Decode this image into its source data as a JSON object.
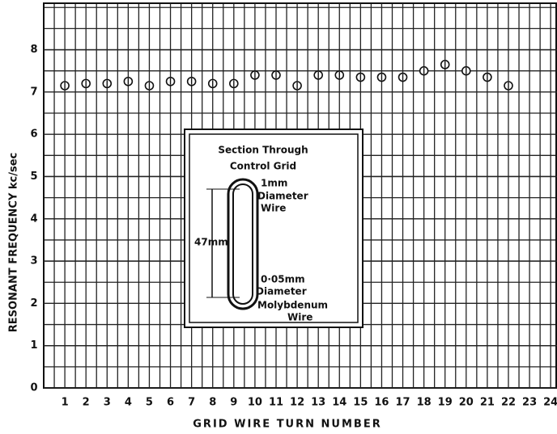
{
  "chart_data": {
    "type": "scatter",
    "y_label": "RESONANT FREQUENCY kc/sec",
    "x_label": "GRID WIRE TURN NUMBER",
    "x": [
      1,
      2,
      3,
      4,
      5,
      6,
      7,
      8,
      9,
      10,
      11,
      12,
      13,
      14,
      15,
      16,
      17,
      18,
      19,
      20,
      21,
      22
    ],
    "values": [
      7.15,
      7.2,
      7.2,
      7.25,
      7.15,
      7.25,
      7.25,
      7.2,
      7.2,
      7.4,
      7.4,
      7.15,
      7.4,
      7.4,
      7.35,
      7.35,
      7.35,
      7.5,
      7.65,
      7.5,
      7.35,
      7.15
    ],
    "color": "#111",
    "xlim": [
      0,
      24.3
    ],
    "xticks": [
      1,
      2,
      3,
      4,
      5,
      6,
      7,
      8,
      9,
      10,
      11,
      12,
      13,
      14,
      15,
      16,
      17,
      18,
      19,
      20,
      21,
      22,
      23,
      24
    ],
    "ylim": [
      0,
      9.1
    ],
    "yticks": [
      0,
      1,
      2,
      3,
      4,
      5,
      6,
      7,
      8
    ],
    "grid": true,
    "annotations": [
      "Section Through",
      "Control Grid",
      "1mm",
      "Diameter",
      "Wire",
      "47mm",
      "0·05mm",
      "Diameter",
      "Molybdenum",
      "Wire"
    ]
  }
}
